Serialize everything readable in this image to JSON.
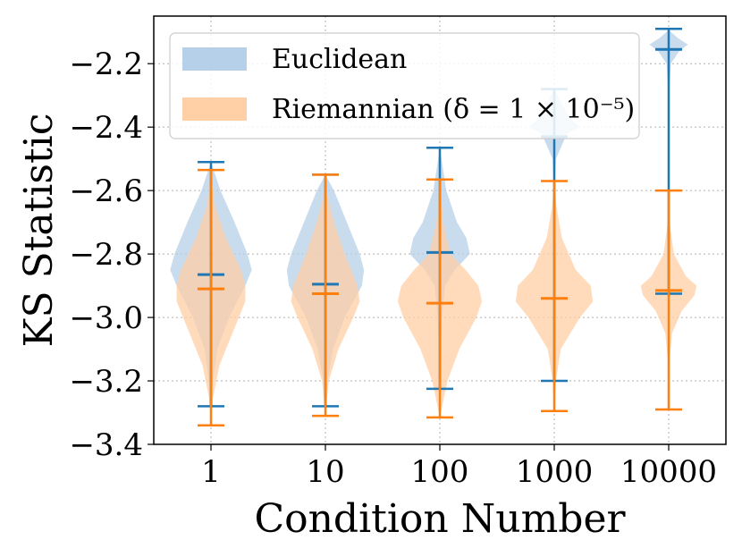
{
  "chart_data": {
    "type": "violin",
    "title": "",
    "xlabel": "Condition Number",
    "ylabel": "KS Statistic",
    "categories": [
      "1",
      "10",
      "100",
      "1000",
      "10000"
    ],
    "yticks": [
      "−3.4",
      "−3.2",
      "−3.0",
      "−2.8",
      "−2.6",
      "−2.4",
      "−2.2"
    ],
    "ylim": [
      -3.4,
      -2.05
    ],
    "grid": true,
    "legend_position": "top-left",
    "series": [
      {
        "name": "Euclidean",
        "color": "#1f77b4",
        "fill": "#b5d0e8",
        "stats": [
          {
            "min": -3.28,
            "max": -2.51,
            "median": -2.865
          },
          {
            "min": -3.28,
            "max": -2.55,
            "median": -2.895
          },
          {
            "min": -3.225,
            "max": -2.465,
            "median": -2.795
          },
          {
            "min": -3.2,
            "max": -2.28,
            "median": -2.43
          },
          {
            "min": -2.925,
            "max": -2.09,
            "median": -2.155
          }
        ],
        "shapes": [
          [
            [
              -3.28,
              0.0
            ],
            [
              -3.2,
              0.05
            ],
            [
              -3.1,
              0.15
            ],
            [
              -3.0,
              0.42
            ],
            [
              -2.9,
              0.8
            ],
            [
              -2.85,
              0.95
            ],
            [
              -2.8,
              0.85
            ],
            [
              -2.7,
              0.55
            ],
            [
              -2.6,
              0.22
            ],
            [
              -2.51,
              0.0
            ]
          ],
          [
            [
              -3.28,
              0.0
            ],
            [
              -3.2,
              0.05
            ],
            [
              -3.1,
              0.18
            ],
            [
              -3.0,
              0.45
            ],
            [
              -2.9,
              0.85
            ],
            [
              -2.85,
              0.9
            ],
            [
              -2.8,
              0.8
            ],
            [
              -2.7,
              0.5
            ],
            [
              -2.6,
              0.2
            ],
            [
              -2.55,
              0.0
            ]
          ],
          [
            [
              -3.225,
              0.0
            ],
            [
              -3.1,
              0.02
            ],
            [
              -3.0,
              0.05
            ],
            [
              -2.9,
              0.12
            ],
            [
              -2.85,
              0.35
            ],
            [
              -2.8,
              0.7
            ],
            [
              -2.75,
              0.62
            ],
            [
              -2.7,
              0.4
            ],
            [
              -2.6,
              0.15
            ],
            [
              -2.465,
              0.0
            ]
          ],
          [
            [
              -3.2,
              0.0
            ],
            [
              -2.9,
              0.0
            ],
            [
              -2.6,
              0.01
            ],
            [
              -2.5,
              0.04
            ],
            [
              -2.45,
              0.2
            ],
            [
              -2.42,
              0.3
            ],
            [
              -2.4,
              0.6
            ],
            [
              -2.37,
              0.35
            ],
            [
              -2.3,
              0.08
            ],
            [
              -2.28,
              0.0
            ]
          ],
          [
            [
              -2.925,
              0.0
            ],
            [
              -2.8,
              0.0
            ],
            [
              -2.5,
              0.0
            ],
            [
              -2.3,
              0.01
            ],
            [
              -2.2,
              0.05
            ],
            [
              -2.16,
              0.25
            ],
            [
              -2.14,
              0.45
            ],
            [
              -2.12,
              0.22
            ],
            [
              -2.1,
              0.05
            ],
            [
              -2.09,
              0.0
            ]
          ]
        ]
      },
      {
        "name": "Riemannian (δ = 1 × 10⁻⁵)",
        "color": "#ff7f0e",
        "fill": "#ffcfa6",
        "stats": [
          {
            "min": -3.34,
            "max": -2.535,
            "median": -2.91
          },
          {
            "min": -3.31,
            "max": -2.55,
            "median": -2.925
          },
          {
            "min": -3.315,
            "max": -2.565,
            "median": -2.955
          },
          {
            "min": -3.295,
            "max": -2.57,
            "median": -2.94
          },
          {
            "min": -3.29,
            "max": -2.6,
            "median": -2.915
          }
        ],
        "shapes": [
          [
            [
              -3.34,
              0.0
            ],
            [
              -3.25,
              0.05
            ],
            [
              -3.15,
              0.2
            ],
            [
              -3.05,
              0.5
            ],
            [
              -2.95,
              0.8
            ],
            [
              -2.9,
              0.8
            ],
            [
              -2.85,
              0.7
            ],
            [
              -2.75,
              0.35
            ],
            [
              -2.65,
              0.1
            ],
            [
              -2.535,
              0.0
            ]
          ],
          [
            [
              -3.31,
              0.0
            ],
            [
              -3.2,
              0.08
            ],
            [
              -3.1,
              0.3
            ],
            [
              -3.0,
              0.65
            ],
            [
              -2.95,
              0.8
            ],
            [
              -2.9,
              0.75
            ],
            [
              -2.8,
              0.45
            ],
            [
              -2.7,
              0.2
            ],
            [
              -2.62,
              0.05
            ],
            [
              -2.55,
              0.0
            ]
          ],
          [
            [
              -3.315,
              0.0
            ],
            [
              -3.2,
              0.18
            ],
            [
              -3.1,
              0.45
            ],
            [
              -3.0,
              0.85
            ],
            [
              -2.95,
              0.98
            ],
            [
              -2.9,
              0.9
            ],
            [
              -2.85,
              0.6
            ],
            [
              -2.8,
              0.25
            ],
            [
              -2.7,
              0.08
            ],
            [
              -2.565,
              0.0
            ]
          ],
          [
            [
              -3.295,
              0.0
            ],
            [
              -3.2,
              0.04
            ],
            [
              -3.1,
              0.15
            ],
            [
              -3.0,
              0.6
            ],
            [
              -2.95,
              0.9
            ],
            [
              -2.9,
              0.85
            ],
            [
              -2.85,
              0.5
            ],
            [
              -2.75,
              0.18
            ],
            [
              -2.65,
              0.05
            ],
            [
              -2.57,
              0.0
            ]
          ],
          [
            [
              -3.29,
              0.0
            ],
            [
              -3.15,
              0.01
            ],
            [
              -3.05,
              0.08
            ],
            [
              -2.98,
              0.3
            ],
            [
              -2.93,
              0.6
            ],
            [
              -2.9,
              0.65
            ],
            [
              -2.87,
              0.4
            ],
            [
              -2.8,
              0.12
            ],
            [
              -2.7,
              0.02
            ],
            [
              -2.6,
              0.0
            ]
          ]
        ]
      }
    ]
  }
}
